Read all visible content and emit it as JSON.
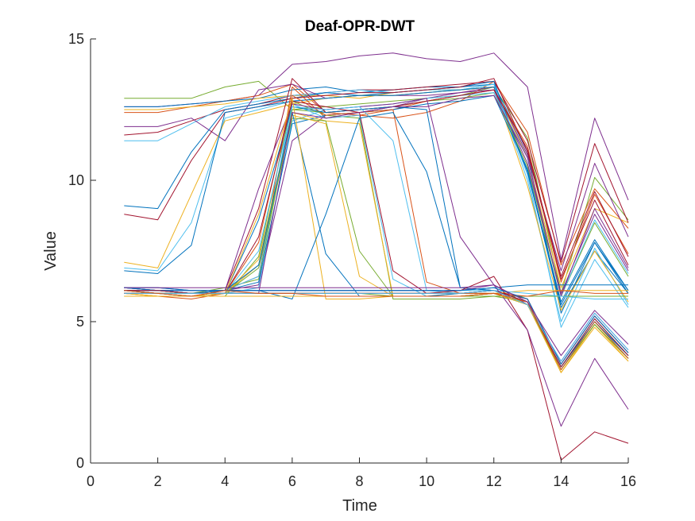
{
  "chart_data": {
    "type": "line",
    "title": "Deaf-OPR-DWT",
    "xlabel": "Time",
    "ylabel": "Value",
    "xlim": [
      0,
      16
    ],
    "ylim": [
      0,
      15
    ],
    "xticks": [
      "0",
      "2",
      "4",
      "6",
      "8",
      "10",
      "12",
      "14",
      "16"
    ],
    "yticks": [
      "0",
      "5",
      "10",
      "15"
    ],
    "grid": false,
    "legend": "none",
    "x": [
      1,
      2,
      3,
      4,
      5,
      6,
      7,
      8,
      9,
      10,
      11,
      12,
      13,
      14,
      15,
      16
    ],
    "series": [
      {
        "color": "#7E2F8E",
        "values": [
          12.6,
          12.6,
          12.7,
          12.8,
          13.0,
          14.1,
          14.2,
          14.4,
          14.5,
          14.3,
          14.2,
          14.5,
          13.3,
          7.2,
          12.2,
          9.3
        ]
      },
      {
        "color": "#77AC30",
        "values": [
          12.9,
          12.9,
          12.9,
          13.3,
          13.5,
          12.5,
          12.6,
          12.7,
          12.8,
          12.9,
          13.0,
          13.3,
          11.5,
          6.0,
          10.1,
          8.6
        ]
      },
      {
        "color": "#D95319",
        "values": [
          12.4,
          12.4,
          12.6,
          12.8,
          13.0,
          13.4,
          12.4,
          12.3,
          12.2,
          12.4,
          12.8,
          13.5,
          11.7,
          7.0,
          9.7,
          8.3
        ]
      },
      {
        "color": "#0072BD",
        "values": [
          12.6,
          12.6,
          12.7,
          12.8,
          12.9,
          13.2,
          13.3,
          13.1,
          13.2,
          13.3,
          13.3,
          13.4,
          11.0,
          5.3,
          7.8,
          6.1
        ]
      },
      {
        "color": "#EDB120",
        "values": [
          12.5,
          12.5,
          12.6,
          12.7,
          12.9,
          13.0,
          13.0,
          12.9,
          13.1,
          13.2,
          13.2,
          13.3,
          10.8,
          6.2,
          9.0,
          8.5
        ]
      },
      {
        "color": "#A2142F",
        "values": [
          11.6,
          11.7,
          12.1,
          12.5,
          12.7,
          13.0,
          13.1,
          13.2,
          13.2,
          13.3,
          13.4,
          13.5,
          11.4,
          7.1,
          11.3,
          8.5
        ]
      },
      {
        "color": "#4DBEEE",
        "values": [
          11.4,
          11.4,
          12.0,
          12.6,
          12.8,
          13.0,
          13.1,
          13.2,
          13.1,
          13.2,
          13.2,
          13.4,
          10.2,
          4.8,
          7.2,
          5.5
        ]
      },
      {
        "color": "#7E2F8E",
        "values": [
          11.9,
          11.9,
          12.2,
          11.4,
          13.2,
          13.4,
          12.9,
          13.0,
          13.0,
          13.0,
          13.1,
          13.3,
          10.9,
          6.8,
          10.6,
          8.0
        ]
      },
      {
        "color": "#0072BD",
        "values": [
          9.1,
          9.0,
          11.0,
          12.5,
          12.7,
          12.9,
          13.1,
          13.0,
          13.1,
          13.2,
          13.3,
          13.5,
          10.3,
          5.5,
          7.5,
          6.0
        ]
      },
      {
        "color": "#A2142F",
        "values": [
          8.8,
          8.6,
          10.7,
          12.4,
          12.6,
          12.9,
          13.0,
          13.1,
          13.1,
          13.2,
          13.3,
          13.6,
          11.0,
          6.5,
          9.3,
          7.0
        ]
      },
      {
        "color": "#4DBEEE",
        "values": [
          6.9,
          6.8,
          8.5,
          12.2,
          12.5,
          12.8,
          12.9,
          13.0,
          13.0,
          13.1,
          13.2,
          13.4,
          10.0,
          5.0,
          7.6,
          5.6
        ]
      },
      {
        "color": "#EDB120",
        "values": [
          7.1,
          6.9,
          9.5,
          12.1,
          12.4,
          12.7,
          12.9,
          13.0,
          13.0,
          13.1,
          13.2,
          13.3,
          9.8,
          5.4,
          7.5,
          5.7
        ]
      },
      {
        "color": "#0072BD",
        "values": [
          6.8,
          6.7,
          7.7,
          12.4,
          12.6,
          12.8,
          12.9,
          13.0,
          13.0,
          13.1,
          13.2,
          13.3,
          10.3,
          5.7,
          7.9,
          6.1
        ]
      },
      {
        "color": "#77AC30",
        "values": [
          6.2,
          6.1,
          6.0,
          6.2,
          6.5,
          12.5,
          12.4,
          12.5,
          12.6,
          12.8,
          12.9,
          13.1,
          10.5,
          5.9,
          8.5,
          6.6
        ]
      },
      {
        "color": "#D95319",
        "values": [
          6.1,
          6.0,
          6.0,
          6.1,
          6.6,
          13.3,
          12.2,
          12.3,
          12.5,
          12.8,
          13.0,
          13.2,
          11.2,
          6.4,
          9.5,
          7.4
        ]
      },
      {
        "color": "#7E2F8E",
        "values": [
          6.2,
          6.2,
          6.1,
          6.1,
          6.3,
          11.4,
          12.3,
          12.4,
          12.6,
          12.9,
          13.1,
          13.2,
          10.6,
          6.0,
          8.8,
          6.8
        ]
      },
      {
        "color": "#4DBEEE",
        "values": [
          6.0,
          6.0,
          5.9,
          6.0,
          6.2,
          12.1,
          12.5,
          12.6,
          12.7,
          12.9,
          13.0,
          13.1,
          10.8,
          5.9,
          8.6,
          6.7
        ]
      },
      {
        "color": "#A2142F",
        "values": [
          6.1,
          6.0,
          5.9,
          6.1,
          9.0,
          13.6,
          12.4,
          12.5,
          12.6,
          12.8,
          13.0,
          13.2,
          11.1,
          6.6,
          9.6,
          7.3
        ]
      },
      {
        "color": "#0072BD",
        "values": [
          6.2,
          6.1,
          6.0,
          6.1,
          6.4,
          12.0,
          12.3,
          12.4,
          12.5,
          12.7,
          12.8,
          13.0,
          10.4,
          5.6,
          7.8,
          6.0
        ]
      },
      {
        "color": "#77AC30",
        "values": [
          6.0,
          6.0,
          5.9,
          5.9,
          7.3,
          12.8,
          12.3,
          12.2,
          5.8,
          5.8,
          5.8,
          5.9,
          5.7,
          3.4,
          5.0,
          3.8
        ]
      },
      {
        "color": "#EDB120",
        "values": [
          6.1,
          6.0,
          6.0,
          6.0,
          7.0,
          12.4,
          12.1,
          12.0,
          5.9,
          5.9,
          5.9,
          6.0,
          5.7,
          3.2,
          4.9,
          3.7
        ]
      },
      {
        "color": "#4DBEEE",
        "values": [
          6.2,
          6.1,
          6.0,
          6.1,
          6.6,
          12.7,
          12.2,
          12.3,
          6.5,
          5.9,
          5.9,
          6.0,
          5.6,
          3.3,
          5.0,
          3.8
        ]
      },
      {
        "color": "#D95319",
        "values": [
          6.0,
          5.9,
          5.8,
          6.0,
          7.8,
          13.0,
          12.3,
          12.4,
          12.5,
          6.4,
          6.0,
          6.1,
          5.8,
          3.5,
          5.2,
          3.9
        ]
      },
      {
        "color": "#0072BD",
        "values": [
          6.1,
          6.0,
          6.0,
          6.0,
          8.6,
          12.6,
          12.4,
          12.5,
          12.6,
          12.5,
          6.2,
          6.1,
          5.7,
          3.4,
          5.1,
          3.8
        ]
      },
      {
        "color": "#7E2F8E",
        "values": [
          6.2,
          6.1,
          6.1,
          6.1,
          9.7,
          12.7,
          12.5,
          12.6,
          12.7,
          12.9,
          8.0,
          6.3,
          5.6,
          3.6,
          5.3,
          4.0
        ]
      },
      {
        "color": "#77AC30",
        "values": [
          6.0,
          6.0,
          5.9,
          6.0,
          6.9,
          12.2,
          12.1,
          7.5,
          5.9,
          5.9,
          5.9,
          6.0,
          5.6,
          3.3,
          4.9,
          3.7
        ]
      },
      {
        "color": "#EDB120",
        "values": [
          6.0,
          5.9,
          5.9,
          6.0,
          7.2,
          12.3,
          12.0,
          6.6,
          5.9,
          5.9,
          6.0,
          6.0,
          5.7,
          3.2,
          4.9,
          3.6
        ]
      },
      {
        "color": "#A2142F",
        "values": [
          6.1,
          6.1,
          6.0,
          6.0,
          8.0,
          12.8,
          12.6,
          12.4,
          6.8,
          6.0,
          6.0,
          6.1,
          5.8,
          3.5,
          5.2,
          3.9
        ]
      },
      {
        "color": "#4DBEEE",
        "values": [
          6.0,
          6.0,
          5.9,
          6.0,
          7.5,
          12.6,
          12.5,
          12.6,
          11.4,
          6.1,
          6.0,
          6.1,
          5.7,
          3.4,
          5.0,
          3.8
        ]
      },
      {
        "color": "#0072BD",
        "values": [
          6.1,
          6.1,
          6.0,
          6.1,
          7.0,
          12.4,
          7.4,
          5.9,
          5.9,
          5.9,
          6.0,
          6.0,
          5.6,
          3.4,
          5.0,
          3.7
        ]
      },
      {
        "color": "#EDB120",
        "values": [
          6.0,
          5.9,
          5.9,
          6.0,
          8.8,
          12.9,
          5.8,
          5.8,
          5.9,
          5.9,
          5.9,
          6.0,
          5.7,
          3.3,
          4.9,
          3.7
        ]
      },
      {
        "color": "#7E2F8E",
        "values": [
          6.0,
          6.0,
          6.0,
          6.0,
          6.0,
          12.4,
          12.2,
          12.4,
          12.6,
          12.6,
          12.9,
          13.0,
          10.8,
          5.9,
          9.0,
          6.9
        ]
      },
      {
        "color": "#0072BD",
        "values": [
          6.2,
          6.2,
          6.1,
          6.1,
          6.1,
          6.1,
          6.1,
          6.1,
          6.1,
          6.1,
          6.1,
          6.2,
          6.3,
          6.3,
          6.3,
          6.3
        ]
      },
      {
        "color": "#EDB120",
        "values": [
          6.0,
          6.0,
          6.0,
          6.0,
          6.0,
          6.0,
          6.0,
          6.0,
          6.0,
          6.0,
          6.0,
          6.0,
          6.1,
          6.1,
          6.1,
          6.1
        ]
      },
      {
        "color": "#77AC30",
        "values": [
          5.9,
          5.9,
          5.9,
          5.9,
          5.9,
          5.9,
          5.9,
          5.9,
          5.9,
          5.9,
          5.9,
          5.9,
          5.9,
          5.9,
          5.9,
          5.9
        ]
      },
      {
        "color": "#4DBEEE",
        "values": [
          6.1,
          6.1,
          6.1,
          6.1,
          6.1,
          6.1,
          6.1,
          6.1,
          6.1,
          6.1,
          6.1,
          6.1,
          6.0,
          5.9,
          5.8,
          5.8
        ]
      },
      {
        "color": "#D95319",
        "values": [
          6.0,
          6.0,
          6.0,
          6.0,
          6.0,
          6.0,
          6.0,
          6.0,
          6.0,
          6.0,
          6.0,
          6.0,
          5.9,
          6.1,
          6.0,
          6.0
        ]
      },
      {
        "color": "#0072BD",
        "values": [
          6.1,
          6.1,
          6.0,
          6.1,
          6.1,
          5.8,
          8.8,
          12.2,
          12.4,
          10.3,
          6.2,
          6.1,
          5.7,
          3.4,
          5.0,
          3.8
        ]
      },
      {
        "color": "#A2142F",
        "values": [
          6.0,
          6.0,
          6.0,
          6.0,
          6.0,
          6.0,
          6.0,
          6.0,
          6.0,
          6.0,
          6.1,
          6.6,
          4.7,
          0.1,
          1.1,
          0.7
        ]
      },
      {
        "color": "#7E2F8E",
        "values": [
          6.1,
          6.1,
          6.1,
          6.1,
          6.1,
          6.1,
          6.1,
          6.1,
          6.1,
          6.1,
          6.1,
          6.3,
          4.7,
          1.3,
          3.7,
          1.9
        ]
      },
      {
        "color": "#77AC30",
        "values": [
          6.1,
          6.0,
          6.0,
          6.0,
          6.0,
          6.0,
          6.0,
          6.0,
          5.9,
          5.9,
          5.9,
          6.0,
          5.6,
          3.3,
          4.9,
          3.7
        ]
      },
      {
        "color": "#EDB120",
        "values": [
          5.9,
          5.9,
          5.9,
          5.9,
          5.9,
          5.9,
          5.9,
          5.9,
          5.9,
          5.9,
          5.9,
          6.0,
          5.6,
          3.2,
          4.8,
          3.6
        ]
      },
      {
        "color": "#0072BD",
        "values": [
          6.2,
          6.1,
          6.1,
          6.1,
          6.1,
          6.1,
          6.1,
          6.1,
          6.1,
          6.1,
          6.1,
          6.2,
          5.8,
          3.5,
          5.2,
          3.9
        ]
      },
      {
        "color": "#A2142F",
        "values": [
          6.1,
          6.1,
          6.0,
          6.0,
          6.0,
          6.0,
          6.0,
          6.0,
          6.0,
          6.0,
          6.0,
          6.1,
          5.7,
          3.4,
          5.1,
          3.8
        ]
      },
      {
        "color": "#4DBEEE",
        "values": [
          6.0,
          6.0,
          6.0,
          6.0,
          6.0,
          6.0,
          6.0,
          6.0,
          6.0,
          6.0,
          6.0,
          6.1,
          5.6,
          3.6,
          5.3,
          4.0
        ]
      },
      {
        "color": "#D95319",
        "values": [
          6.1,
          6.0,
          5.9,
          6.1,
          6.0,
          6.0,
          5.9,
          5.9,
          5.9,
          5.9,
          5.9,
          6.0,
          5.7,
          3.3,
          5.0,
          3.7
        ]
      },
      {
        "color": "#7E2F8E",
        "values": [
          6.2,
          6.2,
          6.2,
          6.2,
          6.2,
          6.2,
          6.2,
          6.2,
          6.2,
          6.2,
          6.2,
          6.3,
          5.7,
          3.8,
          5.4,
          4.2
        ]
      }
    ]
  }
}
